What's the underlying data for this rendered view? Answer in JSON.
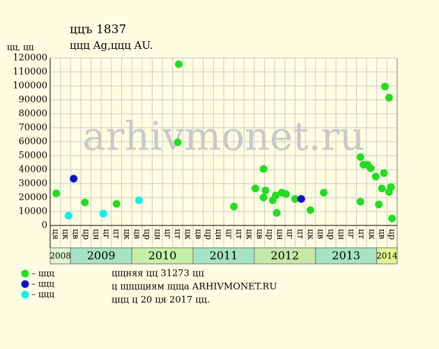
{
  "chart_data": {
    "type": "scatter",
    "title": "ццъ 1837",
    "subtitle": "ццц Ag,ццц AU.",
    "y_label": "цц, цц",
    "watermark": "arhivmonet.ru",
    "xlim": [
      0,
      34
    ],
    "ylim": [
      0,
      120000
    ],
    "yticks": [
      0,
      10000,
      20000,
      30000,
      40000,
      50000,
      60000,
      70000,
      80000,
      90000,
      100000,
      110000,
      120000
    ],
    "grid": true,
    "years": [
      {
        "label": "2008",
        "color": "#dff5cf",
        "months": [
          "ця",
          "цк"
        ]
      },
      {
        "label": "2009",
        "color": "#a6e3c3",
        "months": [
          "цв",
          "цр",
          "цн",
          "цг",
          "цт",
          "цк"
        ]
      },
      {
        "label": "2010",
        "color": "#c4f0a8",
        "months": [
          "цв",
          "цр",
          "цн",
          "цг",
          "цт",
          "цк"
        ]
      },
      {
        "label": "2011",
        "color": "#a6e3c3",
        "months": [
          "цв",
          "цр",
          "цн",
          "цг",
          "цт",
          "цк"
        ]
      },
      {
        "label": "2012",
        "color": "#c4e8a8",
        "months": [
          "цв",
          "цр",
          "цн",
          "цг",
          "цт",
          "цк"
        ]
      },
      {
        "label": "2013",
        "color": "#a6e3c3",
        "months": [
          "цв",
          "цр",
          "цн",
          "цг",
          "цт",
          "цк"
        ]
      },
      {
        "label": "2014",
        "color": "#e2f590",
        "months": [
          "цв",
          "цр"
        ]
      }
    ],
    "series": [
      {
        "name": "– ццц",
        "color": "#22dd22",
        "x": [
          0.6,
          3.4,
          6.5,
          12.6,
          12.5,
          18.0,
          20.1,
          20.9,
          21.1,
          20.9,
          21.8,
          22.2,
          22.1,
          22.7,
          23.1,
          24.0,
          25.5,
          26.8,
          30.4,
          30.4,
          30.7,
          31.1,
          31.4,
          31.9,
          32.2,
          32.5,
          32.7,
          32.8,
          33.2,
          33.2,
          33.4,
          33.5
        ],
        "values": [
          23000,
          16500,
          15500,
          115500,
          59500,
          13500,
          26500,
          40500,
          25000,
          20000,
          18000,
          9000,
          21500,
          23500,
          22500,
          19000,
          11000,
          23500,
          49000,
          17000,
          43500,
          43500,
          41000,
          35000,
          15000,
          26500,
          37500,
          99500,
          91500,
          24000,
          27500,
          5000
        ]
      },
      {
        "name": "– ццц",
        "color": "#1010cc",
        "x": [
          2.3,
          24.6
        ],
        "values": [
          33500,
          19000
        ]
      },
      {
        "name": "– ццц",
        "color": "#11eeee",
        "x": [
          1.8,
          5.2,
          8.7
        ],
        "values": [
          7000,
          8500,
          18000
        ]
      }
    ],
    "notes": [
      "цщняя цц 31273 цц",
      "ц щщщиям щща ARHIVMONET.RU",
      "ццц ц 20 ця 2017 цц."
    ]
  }
}
